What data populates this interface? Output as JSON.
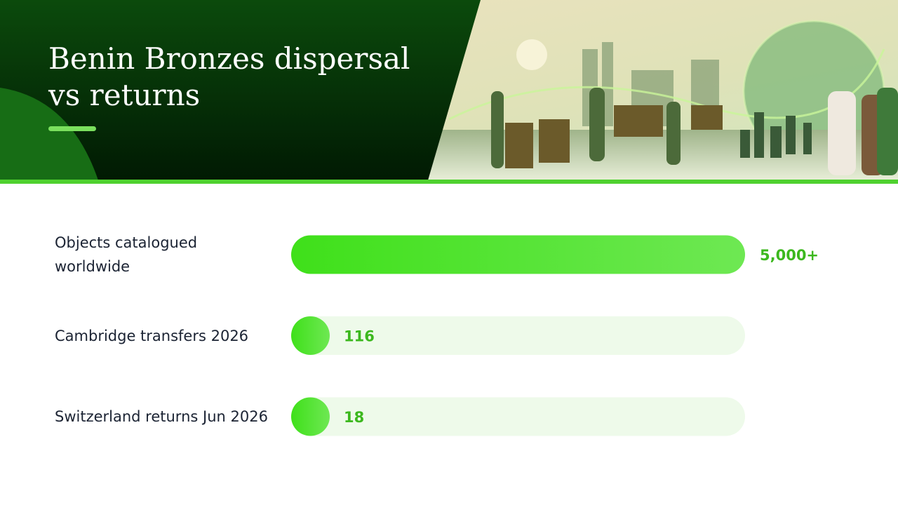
{
  "chart_data": {
    "type": "bar",
    "orientation": "horizontal",
    "title": "Benin Bronzes dispersal vs returns",
    "categories": [
      "Objects catalogued worldwide",
      "Cambridge transfers 2026",
      "Switzerland returns Jun 2026"
    ],
    "values": [
      5000,
      116,
      18
    ],
    "value_labels": [
      "5,000+",
      "116",
      "18"
    ],
    "color": "#45e021"
  }
}
